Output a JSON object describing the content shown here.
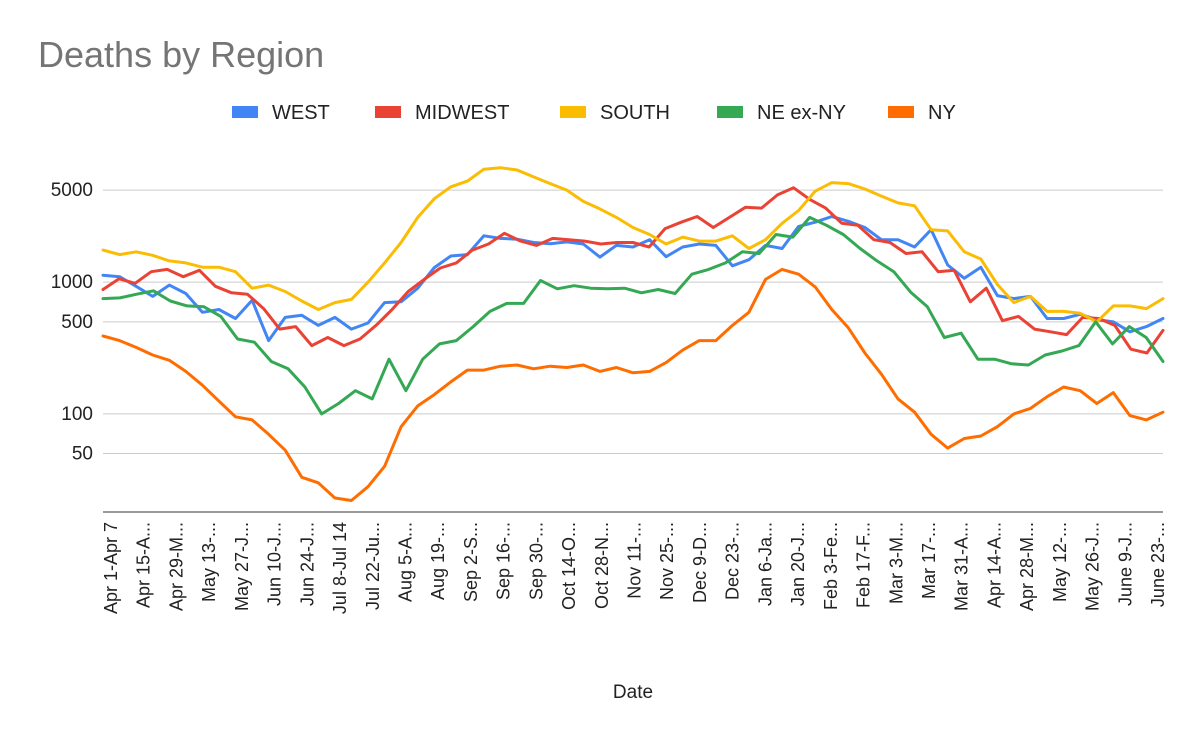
{
  "chart_data": {
    "type": "line",
    "title": "Deaths by Region",
    "xlabel": "Date",
    "ylabel": "",
    "y_scale": "log",
    "ylim": [
      18,
      12000
    ],
    "y_ticks": [
      50,
      100,
      500,
      1000,
      5000
    ],
    "grid": true,
    "legend_position": "top",
    "x_tick_labels": [
      "Apr 1-Apr 7",
      "Apr 15-A...",
      "Apr 29-M...",
      "May 13-...",
      "May 27-J...",
      "Jun 10-J...",
      "Jun 24-J...",
      "Jul 8-Jul 14",
      "Jul 22-Ju...",
      "Aug 5-A...",
      "Aug 19-...",
      "Sep 2-S...",
      "Sep 16-...",
      "Sep 30-...",
      "Oct 14-O...",
      "Oct 28-N...",
      "Nov 11-...",
      "Nov 25-...",
      "Dec 9-D...",
      "Dec 23-...",
      "Jan 6-Ja...",
      "Jan 20-J...",
      "Feb 3-Fe...",
      "Feb 17-F...",
      "Mar 3-M...",
      "Mar 17-...",
      "Mar 31-A...",
      "Apr 14-A...",
      "Apr 28-M...",
      "May 12-...",
      "May 26-J...",
      "June 9-J...",
      "June 23-..."
    ],
    "series": [
      {
        "name": "WEST",
        "color": "#4285F4",
        "values": [
          1130,
          1100,
          930,
          780,
          950,
          820,
          590,
          620,
          530,
          730,
          360,
          540,
          560,
          470,
          540,
          440,
          490,
          700,
          710,
          900,
          1290,
          1580,
          1620,
          2250,
          2150,
          2120,
          2000,
          1960,
          2020,
          1950,
          1550,
          1900,
          1850,
          2100,
          1560,
          1850,
          1950,
          1900,
          1330,
          1480,
          1900,
          1800,
          2650,
          2850,
          3150,
          2900,
          2600,
          2100,
          2100,
          1850,
          2500,
          1350,
          1070,
          1300,
          790,
          750,
          780,
          530,
          530,
          570,
          520,
          500,
          420,
          460,
          530
        ]
      },
      {
        "name": "MIDWEST",
        "color": "#EA4335",
        "values": [
          880,
          1060,
          980,
          1200,
          1250,
          1100,
          1230,
          930,
          830,
          810,
          630,
          440,
          460,
          330,
          380,
          330,
          370,
          470,
          620,
          850,
          1050,
          1280,
          1400,
          1750,
          1950,
          2350,
          2050,
          1900,
          2150,
          2100,
          2050,
          1950,
          2000,
          2000,
          1850,
          2550,
          2850,
          3150,
          2600,
          3100,
          3700,
          3650,
          4600,
          5200,
          4250,
          3650,
          2800,
          2700,
          2100,
          2000,
          1650,
          1700,
          1200,
          1230,
          710,
          900,
          510,
          550,
          440,
          420,
          400,
          540,
          530,
          470,
          310,
          290,
          430
        ]
      },
      {
        "name": "SOUTH",
        "color": "#FBBC04",
        "values": [
          1750,
          1620,
          1700,
          1600,
          1450,
          1400,
          1300,
          1300,
          1200,
          900,
          950,
          850,
          720,
          620,
          700,
          740,
          1000,
          1400,
          2000,
          3100,
          4300,
          5300,
          5850,
          7200,
          7400,
          7100,
          6300,
          5600,
          5000,
          4100,
          3600,
          3100,
          2600,
          2300,
          1950,
          2200,
          2050,
          2050,
          2250,
          1800,
          2100,
          2800,
          3500,
          4900,
          5700,
          5600,
          5100,
          4500,
          4000,
          3800,
          2500,
          2450,
          1700,
          1500,
          960,
          700,
          780,
          600,
          600,
          580,
          500,
          660,
          660,
          630,
          750
        ]
      },
      {
        "name": "NE ex-NY",
        "color": "#34A853",
        "values": [
          750,
          760,
          810,
          860,
          720,
          660,
          650,
          550,
          370,
          350,
          250,
          220,
          160,
          100,
          120,
          150,
          130,
          260,
          150,
          260,
          340,
          360,
          460,
          600,
          690,
          690,
          1030,
          890,
          940,
          900,
          890,
          900,
          830,
          880,
          820,
          1150,
          1250,
          1400,
          1700,
          1650,
          2300,
          2200,
          3100,
          2700,
          2300,
          1800,
          1450,
          1200,
          840,
          650,
          380,
          410,
          260,
          260,
          240,
          235,
          280,
          300,
          330,
          500,
          340,
          460,
          380,
          250
        ]
      },
      {
        "name": "NY",
        "color": "#FF6D01",
        "values": [
          390,
          360,
          320,
          280,
          255,
          210,
          165,
          125,
          95,
          90,
          70,
          53,
          33,
          30,
          23,
          22,
          28,
          40,
          80,
          115,
          140,
          175,
          215,
          215,
          230,
          235,
          220,
          230,
          225,
          235,
          210,
          225,
          205,
          210,
          245,
          305,
          360,
          360,
          470,
          590,
          1050,
          1250,
          1150,
          920,
          620,
          450,
          290,
          200,
          130,
          103,
          70,
          55,
          65,
          68,
          80,
          100,
          110,
          135,
          160,
          150,
          120,
          145,
          97,
          90,
          103
        ]
      }
    ]
  }
}
